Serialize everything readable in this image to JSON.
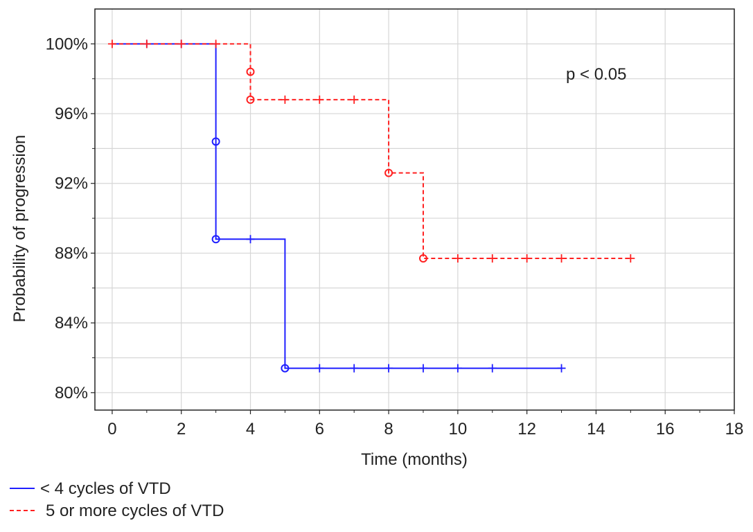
{
  "chart_data": {
    "type": "line",
    "subtype": "kaplan-meier step",
    "title": "",
    "xlabel": "Time (months)",
    "ylabel": "Probability of progression",
    "xlim": [
      -0.5,
      18
    ],
    "ylim": [
      0.79,
      1.02
    ],
    "xticks": [
      0,
      2,
      4,
      6,
      8,
      10,
      12,
      14,
      16,
      18
    ],
    "yticks": [
      0.8,
      0.84,
      0.88,
      0.92,
      0.96,
      1.0
    ],
    "ytick_labels": [
      "80%",
      "84%",
      "88%",
      "92%",
      "96%",
      "100%"
    ],
    "grid": true,
    "annotation": "p < 0.05",
    "legend_position": "bottom-left",
    "series": [
      {
        "name": "< 4 cycles of VTD",
        "color": "#1f1fff",
        "line_style": "solid",
        "steps": [
          [
            0,
            1.0
          ],
          [
            3,
            0.944
          ],
          [
            3,
            0.888
          ],
          [
            5,
            0.814
          ],
          [
            13,
            0.814
          ]
        ],
        "events": [
          [
            3,
            0.944
          ],
          [
            3,
            0.888
          ],
          [
            5,
            0.814
          ]
        ],
        "censored": [
          [
            1,
            1.0
          ],
          [
            2,
            1.0
          ],
          [
            4,
            0.888
          ],
          [
            6,
            0.814
          ],
          [
            7,
            0.814
          ],
          [
            8,
            0.814
          ],
          [
            9,
            0.814
          ],
          [
            10,
            0.814
          ],
          [
            11,
            0.814
          ],
          [
            13,
            0.814
          ]
        ]
      },
      {
        "name": "5 or more cycles of VTD",
        "color": "#ff2020",
        "line_style": "dashed",
        "steps": [
          [
            0,
            1.0
          ],
          [
            4,
            0.984
          ],
          [
            4,
            0.968
          ],
          [
            8,
            0.926
          ],
          [
            9,
            0.877
          ],
          [
            15,
            0.877
          ]
        ],
        "events": [
          [
            4,
            0.984
          ],
          [
            4,
            0.968
          ],
          [
            8,
            0.926
          ],
          [
            9,
            0.877
          ]
        ],
        "censored": [
          [
            0,
            1.0
          ],
          [
            1,
            1.0
          ],
          [
            2,
            1.0
          ],
          [
            3,
            1.0
          ],
          [
            5,
            0.968
          ],
          [
            6,
            0.968
          ],
          [
            7,
            0.968
          ],
          [
            10,
            0.877
          ],
          [
            11,
            0.877
          ],
          [
            12,
            0.877
          ],
          [
            13,
            0.877
          ],
          [
            15,
            0.877
          ]
        ]
      }
    ]
  }
}
